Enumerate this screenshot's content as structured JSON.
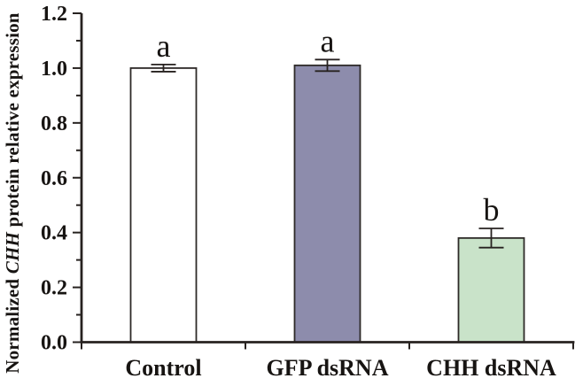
{
  "figure": {
    "background": "#ffffff",
    "ylabel": {
      "prefix": "Normalized ",
      "italic": "CHH",
      "suffix": " protein relative expression"
    }
  },
  "chart_data": {
    "type": "bar",
    "title": "",
    "categories": [
      "Control",
      "GFP dsRNA",
      "CHH dsRNA"
    ],
    "values": [
      1.0,
      1.01,
      0.38
    ],
    "errors": [
      0.013,
      0.021,
      0.035
    ],
    "sig_letters": [
      "a",
      "a",
      "b"
    ],
    "bar_fill_colors": [
      "#ffffff",
      "#8d8cac",
      "#c9e3c9"
    ],
    "bar_edge_color": "#2e2a28",
    "axis_color": "#272220",
    "text_color": "#171412",
    "ylabel": "Normalized CHH protein relative expression",
    "ylabel_italic_word": "CHH",
    "xlabel": "",
    "ylim": [
      0.0,
      1.2
    ],
    "ytick_step": 0.2,
    "ytick_labels": [
      "0.0",
      "0.2",
      "0.4",
      "0.6",
      "0.8",
      "1.0",
      "1.2"
    ],
    "minor_tick_step": 0.1,
    "grid": false,
    "legend": null
  }
}
